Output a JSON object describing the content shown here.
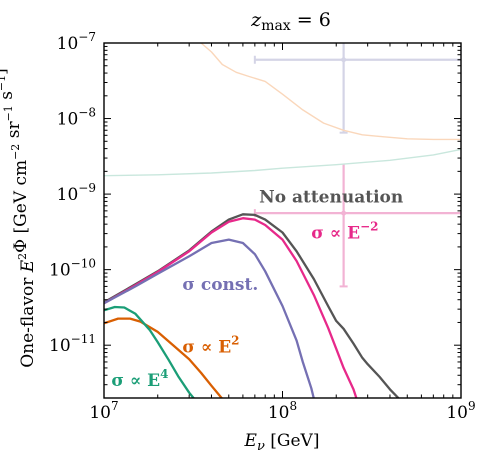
{
  "chart_data": {
    "type": "line",
    "title": "z_max = 6",
    "xlabel": "E_ν [GeV]",
    "ylabel": "One-flavor E²Φ [GeV cm⁻² sr⁻¹ s⁻¹]",
    "xscale": "log",
    "yscale": "log",
    "xlim": [
      10000000.0,
      1000000000.0
    ],
    "ylim": [
      2e-12,
      1e-07
    ],
    "grid": false,
    "legend": "none",
    "x_ticks": [
      {
        "value": 10000000.0,
        "mantissa": "10",
        "exp": "7"
      },
      {
        "value": 100000000.0,
        "mantissa": "10",
        "exp": "8"
      },
      {
        "value": 1000000000.0,
        "mantissa": "10",
        "exp": "9"
      }
    ],
    "y_ticks": [
      {
        "value": 1e-11,
        "mantissa": "10",
        "exp": "−11"
      },
      {
        "value": 1e-10,
        "mantissa": "10",
        "exp": "−10"
      },
      {
        "value": 1e-09,
        "mantissa": "10",
        "exp": "−9"
      },
      {
        "value": 1e-08,
        "mantissa": "10",
        "exp": "−8"
      },
      {
        "value": 1e-07,
        "mantissa": "10",
        "exp": "−7"
      }
    ],
    "series": [
      {
        "name": "No attenuation",
        "color": "#555555",
        "points": [
          [
            10000000.0,
            3.7e-11
          ],
          [
            15000000.0,
            6.4e-11
          ],
          [
            20000000.0,
            9.5e-11
          ],
          [
            30000000.0,
            1.8e-10
          ],
          [
            40000000.0,
            3.2e-10
          ],
          [
            50000000.0,
            4.6e-10
          ],
          [
            60000000.0,
            5.4e-10
          ],
          [
            70000000.0,
            5.3e-10
          ],
          [
            80000000.0,
            4.6e-10
          ],
          [
            100000000.0,
            3.1e-10
          ],
          [
            120000000.0,
            1.75e-10
          ],
          [
            150000000.0,
            7.5e-11
          ],
          [
            180000000.0,
            3.3e-11
          ],
          [
            200000000.0,
            2.1e-11
          ],
          [
            220000000.0,
            1.65e-11
          ],
          [
            250000000.0,
            1.05e-11
          ],
          [
            280000000.0,
            6.8e-12
          ],
          [
            300000000.0,
            5.6e-12
          ],
          [
            350000000.0,
            3.8e-12
          ],
          [
            400000000.0,
            2.6e-12
          ],
          [
            450000000.0,
            1.95e-12
          ]
        ]
      },
      {
        "name": "σ ∝ E⁻²",
        "color": "#e7298a",
        "points": [
          [
            10000000.0,
            3.6e-11
          ],
          [
            15000000.0,
            6.2e-11
          ],
          [
            20000000.0,
            9.3e-11
          ],
          [
            30000000.0,
            1.75e-10
          ],
          [
            40000000.0,
            3.1e-10
          ],
          [
            50000000.0,
            4.3e-10
          ],
          [
            60000000.0,
            4.8e-10
          ],
          [
            70000000.0,
            4.6e-10
          ],
          [
            80000000.0,
            3.9e-10
          ],
          [
            100000000.0,
            2.5e-10
          ],
          [
            120000000.0,
            1.3e-10
          ],
          [
            150000000.0,
            4.6e-11
          ],
          [
            180000000.0,
            1.7e-11
          ],
          [
            200000000.0,
            9e-12
          ],
          [
            220000000.0,
            5e-12
          ],
          [
            250000000.0,
            2.6e-12
          ],
          [
            260000000.0,
            1.95e-12
          ]
        ]
      },
      {
        "name": "σ const.",
        "color": "#7570b3",
        "points": [
          [
            10000000.0,
            3.6e-11
          ],
          [
            15000000.0,
            6e-11
          ],
          [
            20000000.0,
            8.8e-11
          ],
          [
            30000000.0,
            1.5e-10
          ],
          [
            40000000.0,
            2.25e-10
          ],
          [
            50000000.0,
            2.5e-10
          ],
          [
            60000000.0,
            2.25e-10
          ],
          [
            70000000.0,
            1.6e-10
          ],
          [
            80000000.0,
            9.5e-11
          ],
          [
            100000000.0,
            3.3e-11
          ],
          [
            120000000.0,
            1.15e-11
          ],
          [
            130000000.0,
            6e-12
          ],
          [
            145000000.0,
            2.7e-12
          ],
          [
            150000000.0,
            1.95e-12
          ]
        ]
      },
      {
        "name": "σ ∝ E²",
        "color": "#d95f02",
        "points": [
          [
            10000000.0,
            1.95e-11
          ],
          [
            12000000.0,
            2.25e-11
          ],
          [
            14000000.0,
            2.25e-11
          ],
          [
            16000000.0,
            2.05e-11
          ],
          [
            20000000.0,
            1.5e-11
          ],
          [
            25000000.0,
            9.5e-12
          ],
          [
            30000000.0,
            6.5e-12
          ],
          [
            35000000.0,
            4.3e-12
          ],
          [
            40000000.0,
            2.9e-12
          ],
          [
            46000000.0,
            1.95e-12
          ]
        ]
      },
      {
        "name": "σ ∝ E⁴",
        "color": "#1b9e77",
        "points": [
          [
            10000000.0,
            2.9e-11
          ],
          [
            11500000.0,
            3.2e-11
          ],
          [
            13000000.0,
            3.15e-11
          ],
          [
            15000000.0,
            2.6e-11
          ],
          [
            18000000.0,
            1.6e-11
          ],
          [
            20000000.0,
            1.1e-11
          ],
          [
            23000000.0,
            6.4e-12
          ],
          [
            26000000.0,
            3.9e-12
          ],
          [
            30000000.0,
            2.35e-12
          ],
          [
            32000000.0,
            1.95e-12
          ]
        ]
      },
      {
        "name": "",
        "color": "#fad7bb",
        "points": [
          [
            35000000.0,
            1e-07
          ],
          [
            40000000.0,
            7.6e-08
          ],
          [
            46000000.0,
            5.2e-08
          ],
          [
            55000000.0,
            4.1e-08
          ],
          [
            65000000.0,
            3.6e-08
          ],
          [
            80000000.0,
            3.1e-08
          ],
          [
            100000000.0,
            2.1e-08
          ],
          [
            130000000.0,
            1.3e-08
          ],
          [
            170000000.0,
            8.7e-09
          ],
          [
            220000000.0,
            7e-09
          ],
          [
            280000000.0,
            6.1e-09
          ],
          [
            350000000.0,
            5.8e-09
          ],
          [
            500000000.0,
            5.4e-09
          ],
          [
            700000000.0,
            5.3e-09
          ],
          [
            1000000000.0,
            5.3e-09
          ]
        ]
      },
      {
        "name": "",
        "color": "#c9e7dd",
        "points": [
          [
            10000000.0,
            1.75e-09
          ],
          [
            20000000.0,
            1.8e-09
          ],
          [
            40000000.0,
            1.9e-09
          ],
          [
            70000000.0,
            2.05e-09
          ],
          [
            100000000.0,
            2.2e-09
          ],
          [
            200000000.0,
            2.45e-09
          ],
          [
            400000000.0,
            2.8e-09
          ],
          [
            700000000.0,
            3.3e-09
          ],
          [
            1000000000.0,
            3.9e-09
          ]
        ]
      }
    ],
    "error_points": [
      {
        "x": 220000000.0,
        "y": 5.6e-10,
        "x_range": [
          70000000.0,
          1000000000.0
        ],
        "y_range": [
          6e-11,
          2.5e-09
        ],
        "color": "#f2b3d4"
      },
      {
        "x": 220000000.0,
        "y": 6e-08,
        "x_range": [
          70000000.0,
          1000000000.0
        ],
        "y_range": [
          6.5e-09,
          1e-07
        ],
        "color": "#d4d4e6"
      }
    ],
    "annotations": [
      {
        "series": "No attenuation",
        "text": "No attenuation",
        "color": "#555555",
        "x": 74000000.0,
        "y": 7.7e-10
      },
      {
        "series": "σ ∝ E⁻²",
        "text_main": "σ ∝ E",
        "sup": "−2",
        "color": "#e7298a",
        "x": 145000000.0,
        "y": 2.6e-10
      },
      {
        "series": "σ const.",
        "text": "σ const.",
        "color": "#7570b3",
        "x": 27500000.0,
        "y": 5.4e-11
      },
      {
        "series": "σ ∝ E²",
        "text_main": "σ ∝ E",
        "sup": "2",
        "color": "#d95f02",
        "x": 27500000.0,
        "y": 8e-12
      },
      {
        "series": "σ ∝ E⁴",
        "text_main": "σ ∝ E",
        "sup": "4",
        "color": "#1b9e77",
        "x": 11000000.0,
        "y": 2.9e-12
      }
    ]
  }
}
